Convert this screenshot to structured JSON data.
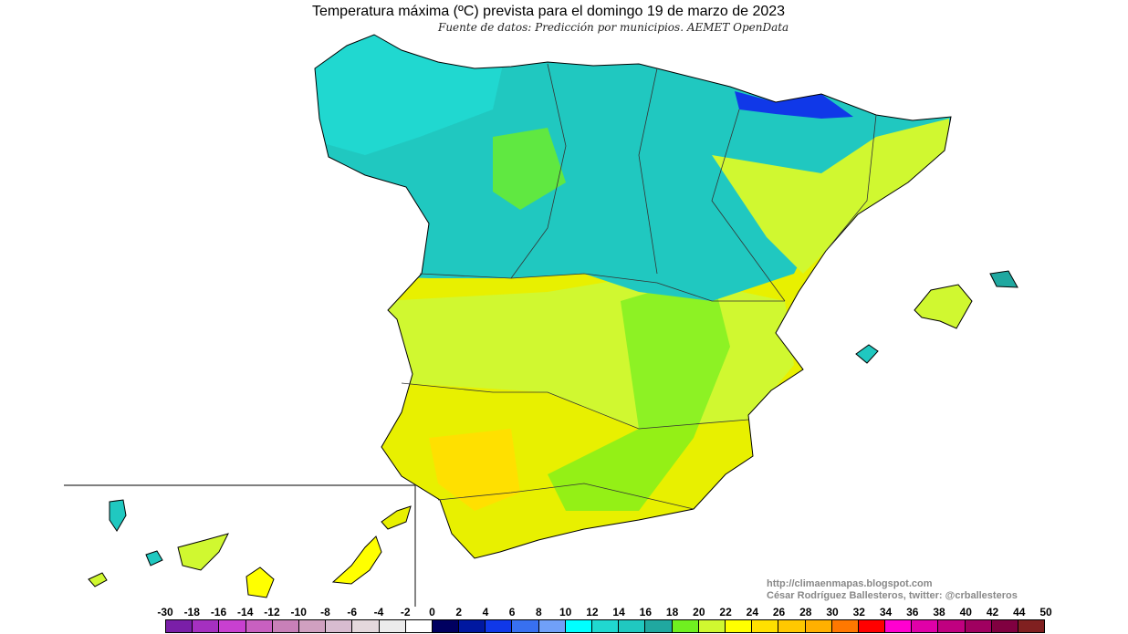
{
  "title": "Temperatura máxima (ºC) prevista para el domingo 19 de marzo de 2023",
  "subtitle": "Fuente de datos: Predicción por municipios. AEMET OpenData",
  "credits": {
    "url": "http://climaenmapas.blogspot.com",
    "author": "César Rodríguez Ballesteros, twitter: @crballesteros"
  },
  "legend": {
    "labels": [
      "-30",
      "-18",
      "-16",
      "-14",
      "-12",
      "-10",
      "-8",
      "-6",
      "-4",
      "-2",
      "0",
      "2",
      "4",
      "6",
      "8",
      "10",
      "12",
      "14",
      "16",
      "18",
      "20",
      "22",
      "24",
      "26",
      "28",
      "30",
      "32",
      "34",
      "36",
      "38",
      "40",
      "42",
      "44",
      "50"
    ],
    "colors": [
      "#7a1fa8",
      "#a530c0",
      "#c840d0",
      "#c860c0",
      "#c880b8",
      "#d0a0c0",
      "#d8bcd0",
      "#e4d8dc",
      "#ececec",
      "#ffffff",
      "#000060",
      "#0018a0",
      "#1038e8",
      "#3870f0",
      "#70a0f8",
      "#00ffff",
      "#20d8d0",
      "#20c8c0",
      "#20a8a0",
      "#70f020",
      "#d0f830",
      "#ffff00",
      "#ffe000",
      "#ffc800",
      "#ffb000",
      "#ff7800",
      "#ff0000",
      "#ff00d0",
      "#e000a8",
      "#c00080",
      "#a00060",
      "#800040",
      "#802020"
    ]
  },
  "map_colors": {
    "north": "#20c8c0",
    "north_light": "#20d8d0",
    "center": "#d0f830",
    "south": "#e8f000",
    "hot": "#ffe000",
    "pyrenees": "#1038e8",
    "green": "#70f020"
  }
}
